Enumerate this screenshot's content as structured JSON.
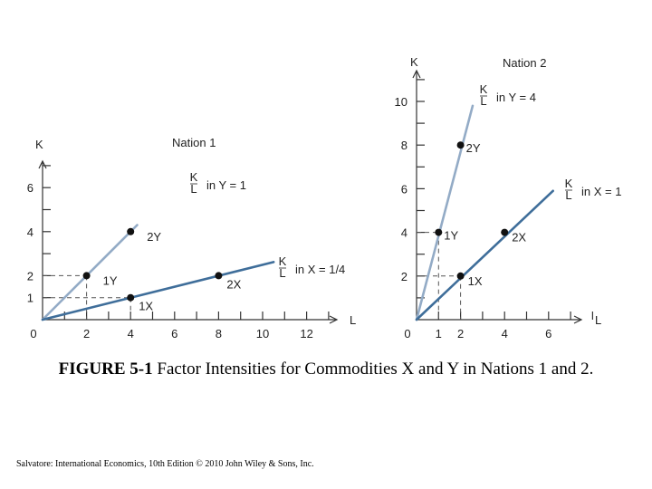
{
  "chart_data": [
    {
      "type": "line",
      "title": "Nation 1",
      "xlabel": "L",
      "ylabel": "K",
      "xlim": [
        0,
        13
      ],
      "ylim": [
        0,
        7.5
      ],
      "x_ticks": [
        0,
        2,
        4,
        6,
        8,
        10,
        12
      ],
      "y_ticks": [
        1,
        2,
        4,
        6
      ],
      "series": [
        {
          "name": "in Y = 1",
          "ratio_label": "K/L",
          "color": "#93abc6",
          "line": [
            [
              0,
              0
            ],
            [
              4.3,
              4.3
            ]
          ],
          "points": [
            {
              "x": 2,
              "y": 2,
              "label": "1Y"
            },
            {
              "x": 4,
              "y": 4,
              "label": "2Y"
            }
          ]
        },
        {
          "name": "in X = 1/4",
          "ratio_label": "K/L",
          "color": "#3f6e9a",
          "line": [
            [
              0,
              0
            ],
            [
              10.5,
              2.62
            ]
          ],
          "points": [
            {
              "x": 4,
              "y": 1,
              "label": "1X"
            },
            {
              "x": 8,
              "y": 2,
              "label": "2X"
            }
          ]
        }
      ],
      "guides": [
        [
          2,
          2
        ],
        [
          4,
          1
        ]
      ]
    },
    {
      "type": "line",
      "title": "Nation 2",
      "xlabel": "L",
      "ylabel": "K",
      "xlim": [
        0,
        8
      ],
      "ylim": [
        0,
        11.5
      ],
      "x_ticks": [
        0,
        1,
        2,
        4,
        6
      ],
      "y_ticks": [
        2,
        4,
        6,
        8,
        10
      ],
      "series": [
        {
          "name": "in Y = 4",
          "ratio_label": "K/L",
          "color": "#93abc6",
          "line": [
            [
              0,
              0
            ],
            [
              2.55,
              9.8
            ]
          ],
          "points": [
            {
              "x": 1,
              "y": 4,
              "label": "1Y"
            },
            {
              "x": 2,
              "y": 8,
              "label": "2Y"
            }
          ]
        },
        {
          "name": "in X = 1",
          "ratio_label": "K/L",
          "color": "#3f6e9a",
          "line": [
            [
              0,
              0
            ],
            [
              6.2,
              5.9
            ]
          ],
          "points": [
            {
              "x": 2,
              "y": 2,
              "label": "1X"
            },
            {
              "x": 4,
              "y": 4,
              "label": "2X"
            }
          ]
        }
      ],
      "guides": [
        [
          1,
          4
        ],
        [
          2,
          2
        ]
      ]
    }
  ],
  "caption": {
    "figure_label": "FIGURE 5-1",
    "text": " Factor Intensities for Commodities X and Y in Nations 1 and 2."
  },
  "credit": "Salvatore: International Economics, 10th Edition © 2010 John Wiley & Sons, Inc."
}
